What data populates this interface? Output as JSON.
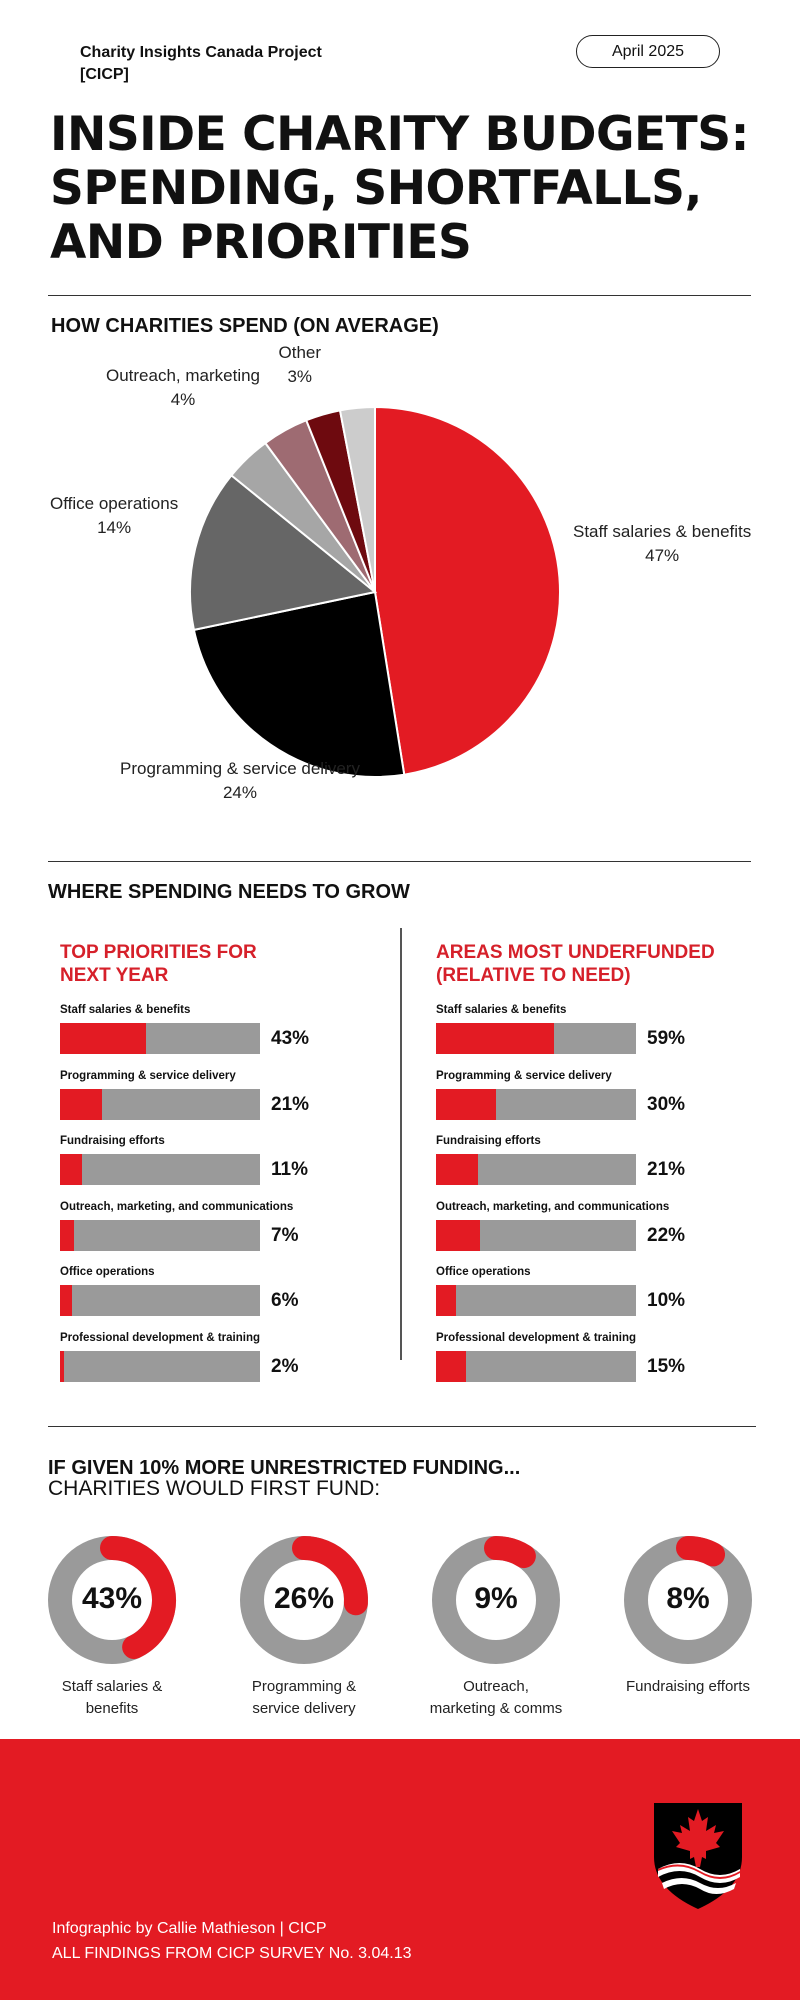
{
  "header": {
    "org_line1": "Charity Insights Canada Project",
    "org_line2": "[CICP]",
    "date": "April 2025"
  },
  "title": {
    "line1": "INSIDE CHARITY BUDGETS:",
    "line2": "SPENDING, SHORTFALLS,",
    "line3": "AND PRIORITIES"
  },
  "sections": {
    "spend_title": "HOW CHARITIES SPEND (ON AVERAGE)",
    "grow_title": "WHERE SPENDING NEEDS TO GROW",
    "funding_title": "IF GIVEN 10% MORE UNRESTRICTED FUNDING...",
    "funding_subtitle": "CHARITIES WOULD FIRST FUND:"
  },
  "colors": {
    "accent": "#e31b23",
    "track": "#9a9a9a",
    "dark": "#111111"
  },
  "chart_data": [
    {
      "type": "pie",
      "title": "HOW CHARITIES SPEND (ON AVERAGE)",
      "slices": [
        {
          "label": "Staff salaries & benefits",
          "value": 47,
          "display": "47%",
          "color": "#e31b23"
        },
        {
          "label": "Programming & service delivery",
          "value": 24,
          "display": "24%",
          "color": "#000000"
        },
        {
          "label": "Office operations",
          "value": 14,
          "display": "14%",
          "color": "#666666"
        },
        {
          "label": "",
          "value": 4,
          "display": "",
          "color": "#a6a6a6"
        },
        {
          "label": "Outreach, marketing",
          "value": 4,
          "display": "4%",
          "color": "#9e6b72"
        },
        {
          "label": "",
          "value": 3,
          "display": "",
          "color": "#6e0a0f"
        },
        {
          "label": "Other",
          "value": 3,
          "display": "3%",
          "color": "#cccccc"
        }
      ]
    },
    {
      "type": "bar",
      "title": "TOP PRIORITIES FOR NEXT YEAR",
      "title_line1": "TOP PRIORITIES FOR",
      "title_line2": "NEXT YEAR",
      "categories": [
        "Staff salaries & benefits",
        "Programming & service delivery",
        "Fundraising efforts",
        "Outreach, marketing, and communications",
        "Office operations",
        "Professional development & training"
      ],
      "values": [
        43,
        21,
        11,
        7,
        6,
        2
      ],
      "value_labels": [
        "43%",
        "21%",
        "11%",
        "7%",
        "6%",
        "2%"
      ],
      "ylim": [
        0,
        100
      ]
    },
    {
      "type": "bar",
      "title": "AREAS MOST UNDERFUNDED (RELATIVE TO NEED)",
      "title_line1": "AREAS MOST UNDERFUNDED",
      "title_line2": "(RELATIVE TO NEED)",
      "categories": [
        "Staff salaries & benefits",
        "Programming & service delivery",
        "Fundraising efforts",
        "Outreach, marketing, and communications",
        "Office operations",
        "Professional development & training"
      ],
      "values": [
        59,
        30,
        21,
        22,
        10,
        15
      ],
      "value_labels": [
        "59%",
        "30%",
        "21%",
        "22%",
        "10%",
        "15%"
      ],
      "ylim": [
        0,
        100
      ]
    },
    {
      "type": "pie",
      "title": "IF GIVEN 10% MORE UNRESTRICTED FUNDING... CHARITIES WOULD FIRST FUND:",
      "donuts": [
        {
          "label_line1": "Staff salaries &",
          "label_line2": "benefits",
          "value": 43,
          "display": "43%"
        },
        {
          "label_line1": "Programming &",
          "label_line2": "service delivery",
          "value": 26,
          "display": "26%"
        },
        {
          "label_line1": "Outreach,",
          "label_line2": "marketing & comms",
          "value": 9,
          "display": "9%"
        },
        {
          "label_line1": "Fundraising efforts",
          "label_line2": "",
          "value": 8,
          "display": "8%"
        }
      ]
    }
  ],
  "footer": {
    "credit": "Infographic by Callie Mathieson | CICP",
    "source": "ALL FINDINGS FROM CICP SURVEY No. 3.04.13",
    "logo_icon": "maple-leaf-shield-icon"
  }
}
